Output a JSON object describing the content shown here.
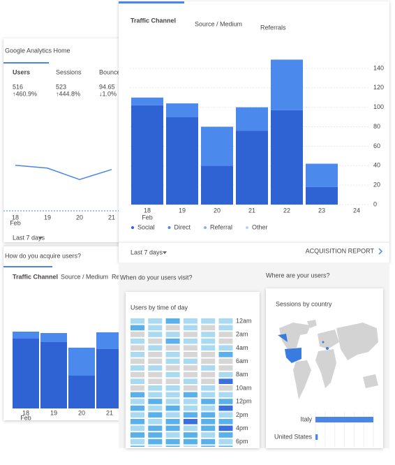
{
  "back_panel": {
    "title": "Google Analytics Home",
    "metrics": [
      {
        "label": "Users",
        "value": "516",
        "change": "↑460.9%",
        "change_color": "#1e9e4a"
      },
      {
        "label": "Sessions",
        "value": "523",
        "change": "↑444.8%",
        "change_color": "#1e9e4a"
      },
      {
        "label": "Bounce Rate",
        "value": "94.65",
        "change": "↓1.0%",
        "change_color": "#d93025"
      }
    ],
    "line_chart": {
      "type": "line",
      "categories": [
        "18",
        "19",
        "20",
        "21"
      ],
      "month": "Feb",
      "values": [
        32,
        30,
        22,
        29
      ],
      "ylim": [
        0,
        50
      ],
      "color": "#4a86e8"
    },
    "period": "Last 7 days",
    "section_title": "How do you acquire users?",
    "tabs": [
      "Traffic Channel",
      "Source / Medium",
      "Referrals"
    ],
    "bar_chart": {
      "type": "bar",
      "categories": [
        "18",
        "19",
        "20",
        "21"
      ],
      "month": "Feb",
      "ylim": [
        0,
        120
      ],
      "series": [
        {
          "name": "Social",
          "color": "#2f63d3",
          "values": [
            100,
            95,
            47,
            85
          ]
        },
        {
          "name": "Direct",
          "color": "#4b8aec",
          "values": [
            10,
            13,
            40,
            24
          ]
        }
      ]
    }
  },
  "front_panel": {
    "tabs": [
      "Traffic Channel",
      "Source / Medium",
      "Referrals"
    ],
    "traffic_chart": {
      "type": "bar",
      "categories": [
        "18",
        "19",
        "20",
        "21",
        "22",
        "23",
        "24"
      ],
      "month": "Feb",
      "ylim": [
        0,
        150
      ],
      "yticks": [
        0,
        20,
        40,
        60,
        80,
        100,
        120,
        140
      ],
      "grid": true,
      "legend": "bottom-left",
      "series": [
        {
          "name": "Social",
          "color": "#2f63d3",
          "values": [
            102,
            90,
            40,
            76,
            97,
            18,
            null
          ]
        },
        {
          "name": "Direct",
          "color": "#4b8aec",
          "values": [
            8,
            14,
            40,
            24,
            52,
            24,
            null
          ]
        },
        {
          "name": "Referral",
          "color": "#7fb2f2",
          "values": [
            0,
            0,
            0,
            0,
            0,
            0,
            null
          ]
        },
        {
          "name": "Other",
          "color": "#b6d3f7",
          "values": [
            0,
            0,
            0,
            0,
            0,
            0,
            null
          ]
        }
      ]
    },
    "period": "Last 7 days",
    "report_link": "ACQUISITION REPORT",
    "visit_card": {
      "title": "When do your users visit?",
      "chart": {
        "type": "heatmap",
        "subtitle": "Users by time of day",
        "row_labels": [
          "12am",
          "2am",
          "4am",
          "6am",
          "8am",
          "10am",
          "12pm",
          "2pm",
          "4pm",
          "6pm"
        ],
        "colors": [
          "#d6d6d6",
          "#a9daf2",
          "#5ab0ea",
          "#3b6fdc"
        ],
        "values": [
          [
            1,
            1,
            2,
            1,
            1,
            1
          ],
          [
            2,
            1,
            0,
            1,
            0,
            1
          ],
          [
            0,
            1,
            1,
            0,
            1,
            0
          ],
          [
            1,
            0,
            2,
            1,
            1,
            0
          ],
          [
            0,
            1,
            0,
            0,
            1,
            1
          ],
          [
            1,
            0,
            1,
            0,
            0,
            2
          ],
          [
            0,
            0,
            1,
            1,
            0,
            0
          ],
          [
            1,
            1,
            0,
            0,
            1,
            0
          ],
          [
            0,
            0,
            1,
            0,
            0,
            1
          ],
          [
            1,
            0,
            0,
            1,
            0,
            3
          ],
          [
            0,
            1,
            1,
            0,
            1,
            0
          ],
          [
            2,
            1,
            1,
            2,
            1,
            1
          ],
          [
            1,
            2,
            1,
            1,
            2,
            2
          ],
          [
            2,
            1,
            2,
            1,
            1,
            3
          ],
          [
            1,
            2,
            1,
            2,
            2,
            1
          ],
          [
            2,
            1,
            2,
            3,
            2,
            2
          ],
          [
            1,
            2,
            2,
            1,
            2,
            3
          ],
          [
            2,
            2,
            1,
            2,
            1,
            2
          ],
          [
            1,
            2,
            2,
            2,
            2,
            1
          ],
          [
            2,
            1,
            2,
            1,
            2,
            2
          ]
        ]
      }
    },
    "map_card": {
      "title": "Where are your users?",
      "chart": {
        "type": "bar",
        "subtitle": "Sessions by country",
        "categories": [
          "Italy",
          "United States"
        ],
        "values": [
          100,
          4
        ],
        "xlim": [
          0,
          100
        ],
        "color": "#4a86e8"
      }
    }
  }
}
